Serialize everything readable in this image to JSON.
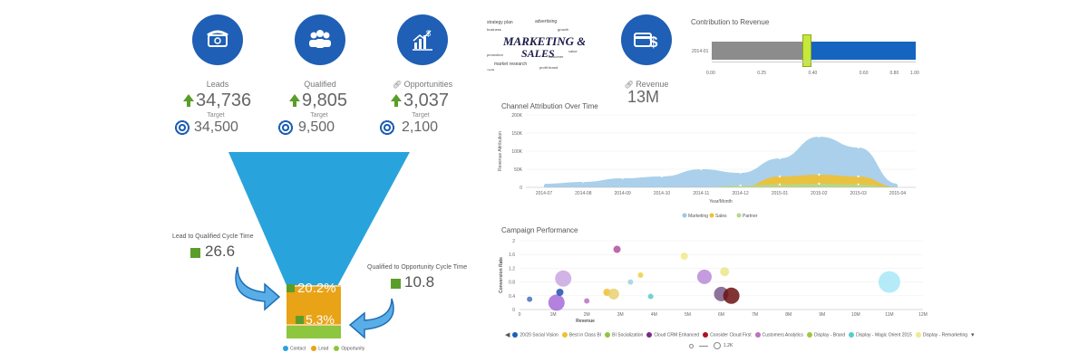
{
  "kpis": [
    {
      "label": "Leads",
      "value": "34,736",
      "target_label": "Target",
      "target": "34,500",
      "icon": "phone-icon"
    },
    {
      "label": "Qualified",
      "value": "9,805",
      "target_label": "Target",
      "target": "9,500",
      "icon": "people-icon"
    },
    {
      "label": "Opportunities",
      "value": "3,037",
      "target_label": "Target",
      "target": "2,100",
      "icon": "growth-chart-icon"
    }
  ],
  "revenue": {
    "label": "Revenue",
    "value": "13M",
    "icon": "dollar-card-icon"
  },
  "logo_text": "MARKETING & SALES",
  "funnel": {
    "cycle_lead": {
      "label": "Lead to Qualified Cycle Time",
      "value": "26.6"
    },
    "cycle_opp": {
      "label": "Qualified to Opportunity Cycle Time",
      "value": "10.8"
    },
    "pct1": "20.2%",
    "pct2": "5.3%",
    "legend": [
      "Contact",
      "Lead",
      "Opportunity"
    ],
    "colors": {
      "contact": "#29a3dc",
      "lead": "#e8a317",
      "opportunity": "#8dc63f"
    }
  },
  "contribution": {
    "title": "Contribution to Revenue",
    "row_label": "2014-01",
    "ticks": [
      "0.00",
      "0.25",
      "0.40",
      "0.60",
      "0.80",
      "1.00"
    ],
    "gray_end": 0.45,
    "slider": 0.465
  },
  "chart_data": [
    {
      "type": "area",
      "title": "Channel Attribution Over Time",
      "xlabel": "Year/Month",
      "ylabel": "Revenue Attribution",
      "yticks": [
        "200K",
        "150K",
        "100K",
        "50K",
        "0"
      ],
      "categories": [
        "2014-07",
        "2014-08",
        "2014-09",
        "2014-10",
        "2014-11",
        "2014-12",
        "2015-01",
        "2015-02",
        "2015-03",
        "2015-04"
      ],
      "ylim": [
        0,
        200000
      ],
      "series": [
        {
          "name": "Marketing",
          "color": "#9cc8e8",
          "values": [
            10000,
            15000,
            25000,
            30000,
            50000,
            40000,
            80000,
            140000,
            110000,
            10000
          ]
        },
        {
          "name": "Sales",
          "color": "#f0c030",
          "values": [
            0,
            0,
            0,
            0,
            0,
            0,
            30000,
            35000,
            30000,
            0
          ]
        },
        {
          "name": "Partner",
          "color": "#b5d98a",
          "values": [
            0,
            0,
            0,
            0,
            0,
            5000,
            8000,
            10000,
            8000,
            0
          ]
        }
      ]
    },
    {
      "type": "scatter",
      "title": "Campaign Performance",
      "xlabel": "Revenue",
      "ylabel": "Conversion Rate",
      "xticks": [
        "0",
        "1M",
        "2M",
        "3M",
        "4M",
        "5M",
        "6M",
        "7M",
        "8M",
        "9M",
        "10M",
        "11M",
        "12M"
      ],
      "yticks": [
        "2",
        "1.6",
        "1.2",
        "0.8",
        "0.4",
        "0"
      ],
      "xlim": [
        0,
        12000000
      ],
      "ylim": [
        0,
        2
      ],
      "points": [
        {
          "x": 2900000,
          "y": 1.75,
          "r": 4,
          "color": "#b0509a"
        },
        {
          "x": 4900000,
          "y": 1.55,
          "r": 4,
          "color": "#f2e98a"
        },
        {
          "x": 1300000,
          "y": 0.9,
          "r": 9,
          "color": "#c9a7e0"
        },
        {
          "x": 5500000,
          "y": 0.95,
          "r": 8,
          "color": "#b88ad8"
        },
        {
          "x": 6100000,
          "y": 1.1,
          "r": 5,
          "color": "#e8e888"
        },
        {
          "x": 3300000,
          "y": 0.8,
          "r": 3,
          "color": "#9ed0ea"
        },
        {
          "x": 3600000,
          "y": 1.0,
          "r": 3,
          "color": "#f0d040"
        },
        {
          "x": 2600000,
          "y": 0.5,
          "r": 4,
          "color": "#f0c030"
        },
        {
          "x": 2800000,
          "y": 0.45,
          "r": 6,
          "color": "#e8d070"
        },
        {
          "x": 3900000,
          "y": 0.38,
          "r": 3,
          "color": "#55cccc"
        },
        {
          "x": 6000000,
          "y": 0.45,
          "r": 8,
          "color": "#7a5a8a"
        },
        {
          "x": 6300000,
          "y": 0.4,
          "r": 9,
          "color": "#6b1010"
        },
        {
          "x": 1100000,
          "y": 0.2,
          "r": 9,
          "color": "#a66bd8"
        },
        {
          "x": 300000,
          "y": 0.3,
          "r": 3,
          "color": "#4a70c0"
        },
        {
          "x": 1200000,
          "y": 0.5,
          "r": 4,
          "color": "#2050b0"
        },
        {
          "x": 2000000,
          "y": 0.25,
          "r": 3,
          "color": "#c070c0"
        },
        {
          "x": 11000000,
          "y": 0.8,
          "r": 12,
          "color": "#a8e8f8"
        }
      ],
      "legend": [
        {
          "name": "20/20 Social Vision",
          "color": "#1f5fb5"
        },
        {
          "name": "Best in Class BI",
          "color": "#f0c030"
        },
        {
          "name": "BI Socialization",
          "color": "#8dc63f"
        },
        {
          "name": "Cloud CRM Enhanced",
          "color": "#7a2a8a"
        },
        {
          "name": "Consider Cloud First",
          "color": "#b01020"
        },
        {
          "name": "Customers Analytics",
          "color": "#c070c0"
        },
        {
          "name": "Display - Brand",
          "color": "#9cc840"
        },
        {
          "name": "Display - Magic Orient 2015",
          "color": "#55cccc"
        },
        {
          "name": "Display - Remarketing",
          "color": "#f2e98a"
        }
      ],
      "legend_more": "▾",
      "size_legend": "1.2K"
    }
  ]
}
